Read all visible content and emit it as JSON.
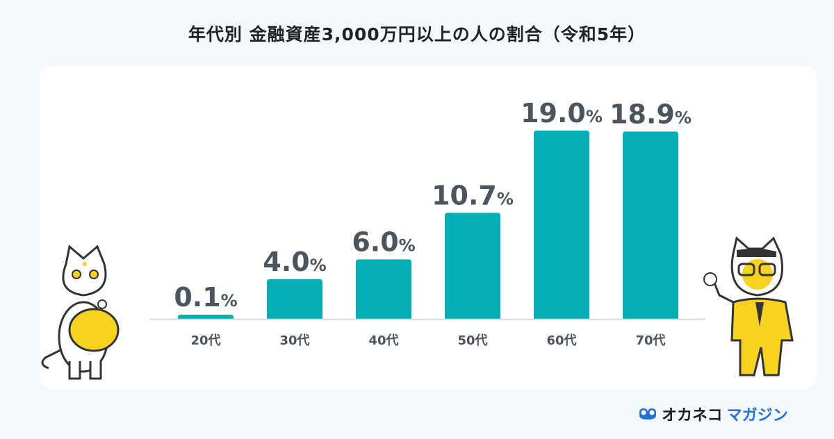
{
  "chart_data": {
    "type": "bar",
    "title": "年代別 金融資産3,000万円以上の人の割合（令和5年）",
    "categories": [
      "20代",
      "30代",
      "40代",
      "50代",
      "60代",
      "70代"
    ],
    "values": [
      0.1,
      4.0,
      6.0,
      10.7,
      19.0,
      18.9
    ],
    "value_labels": [
      "0.1",
      "4.0",
      "6.0",
      "10.7",
      "19.0",
      "18.9"
    ],
    "unit": "%",
    "xlabel": "",
    "ylabel": "",
    "ylim": [
      0,
      19.0
    ],
    "grid": false,
    "bar_color": "#04b0b5"
  },
  "brand": {
    "part1": "オカネコ",
    "part2": "マガジン",
    "icon": "glasses-logo-icon"
  },
  "colors": {
    "label": "#4a5560",
    "axis": "#c8cdd2",
    "brand_blue": "#1f6fdc"
  }
}
